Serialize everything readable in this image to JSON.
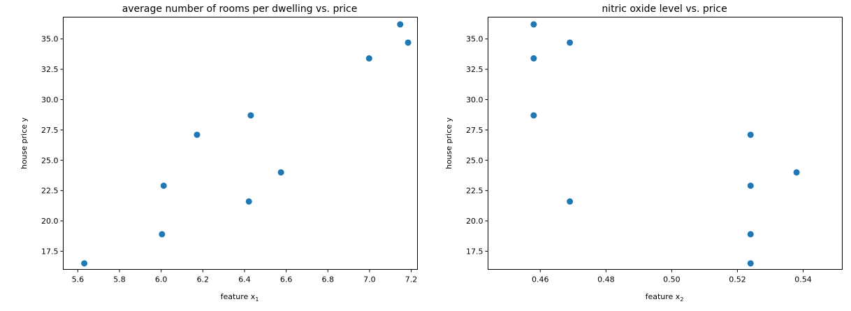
{
  "colors": {
    "marker": "#1f77b4",
    "frame": "#000000",
    "background": "#ffffff"
  },
  "chart_data": [
    {
      "type": "scatter",
      "title": "average number of rooms per dwelling vs. price",
      "xlabel": "feature x",
      "xlabel_subscript": "1",
      "ylabel": "house price y",
      "xlim": [
        5.53,
        7.23
      ],
      "ylim": [
        16.0,
        36.8
      ],
      "grid": false,
      "xticks": [
        5.6,
        5.8,
        6.0,
        6.2,
        6.4,
        6.6,
        6.8,
        7.0,
        7.2
      ],
      "xtick_labels": [
        "5.6",
        "5.8",
        "6.0",
        "6.2",
        "6.4",
        "6.6",
        "6.8",
        "7.0",
        "7.2"
      ],
      "yticks": [
        17.5,
        20.0,
        22.5,
        25.0,
        27.5,
        30.0,
        32.5,
        35.0
      ],
      "ytick_labels": [
        "17.5",
        "20.0",
        "22.5",
        "25.0",
        "27.5",
        "30.0",
        "32.5",
        "35.0"
      ],
      "points": [
        {
          "x": 5.631,
          "y": 16.5
        },
        {
          "x": 6.004,
          "y": 18.9
        },
        {
          "x": 6.012,
          "y": 22.9
        },
        {
          "x": 6.172,
          "y": 27.1
        },
        {
          "x": 6.421,
          "y": 21.6
        },
        {
          "x": 6.43,
          "y": 28.7
        },
        {
          "x": 6.575,
          "y": 24.0
        },
        {
          "x": 6.998,
          "y": 33.4
        },
        {
          "x": 7.147,
          "y": 36.2
        },
        {
          "x": 7.185,
          "y": 34.7
        }
      ]
    },
    {
      "type": "scatter",
      "title": "nitric oxide level vs. price",
      "xlabel": "feature x",
      "xlabel_subscript": "2",
      "ylabel": "house price y",
      "xlim": [
        0.4441,
        0.5519
      ],
      "ylim": [
        16.0,
        36.8
      ],
      "grid": false,
      "xticks": [
        0.46,
        0.48,
        0.5,
        0.52,
        0.54
      ],
      "xtick_labels": [
        "0.46",
        "0.48",
        "0.50",
        "0.52",
        "0.54"
      ],
      "yticks": [
        17.5,
        20.0,
        22.5,
        25.0,
        27.5,
        30.0,
        32.5,
        35.0
      ],
      "ytick_labels": [
        "17.5",
        "20.0",
        "22.5",
        "25.0",
        "27.5",
        "30.0",
        "32.5",
        "35.0"
      ],
      "points": [
        {
          "x": 0.458,
          "y": 36.2
        },
        {
          "x": 0.458,
          "y": 33.4
        },
        {
          "x": 0.458,
          "y": 28.7
        },
        {
          "x": 0.469,
          "y": 34.7
        },
        {
          "x": 0.469,
          "y": 21.6
        },
        {
          "x": 0.524,
          "y": 27.1
        },
        {
          "x": 0.524,
          "y": 22.9
        },
        {
          "x": 0.524,
          "y": 18.9
        },
        {
          "x": 0.524,
          "y": 16.5
        },
        {
          "x": 0.538,
          "y": 24.0
        }
      ]
    }
  ]
}
